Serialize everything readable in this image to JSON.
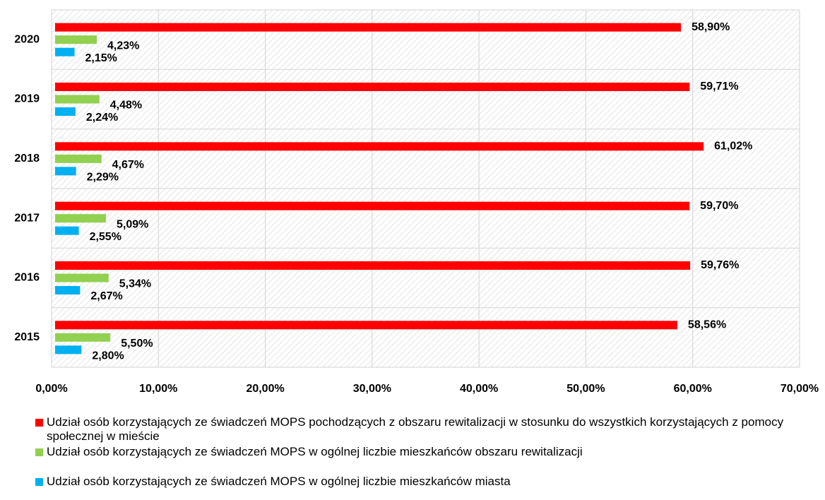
{
  "colors": {
    "series1": "#ff0000",
    "series2": "#92d050",
    "series3": "#00b0f0",
    "grid": "#d9d9d9",
    "hatch": "#dcdcdc"
  },
  "chart_data": {
    "type": "bar",
    "orientation": "horizontal",
    "categories": [
      "2015",
      "2016",
      "2017",
      "2018",
      "2019",
      "2020"
    ],
    "series": [
      {
        "name": "Udział osób korzystających ze świadczeń MOPS pochodzących z obszaru rewitalizacji w stosunku do wszystkich korzystających z pomocy społecznej w mieście",
        "values": [
          58.56,
          59.76,
          59.7,
          61.02,
          59.71,
          58.9
        ],
        "labels": [
          "58,56%",
          "59,76%",
          "59,70%",
          "61,02%",
          "59,71%",
          "58,90%"
        ]
      },
      {
        "name": "Udział osób korzystających ze świadczeń MOPS w ogólnej liczbie mieszkańców obszaru rewitalizacji",
        "values": [
          5.5,
          5.34,
          5.09,
          4.67,
          4.48,
          4.23
        ],
        "labels": [
          "5,50%",
          "5,34%",
          "5,09%",
          "4,67%",
          "4,48%",
          "4,23%"
        ]
      },
      {
        "name": "Udział osób korzystających ze świadczeń MOPS w ogólnej liczbie mieszkańców miasta",
        "values": [
          2.8,
          2.67,
          2.55,
          2.29,
          2.24,
          2.15
        ],
        "labels": [
          "2,80%",
          "2,67%",
          "2,55%",
          "2,29%",
          "2,24%",
          "2,15%"
        ]
      }
    ],
    "xlim": [
      0,
      70
    ],
    "xticks": [
      0,
      10,
      20,
      30,
      40,
      50,
      60,
      70
    ],
    "xtick_labels": [
      "0,00%",
      "10,00%",
      "20,00%",
      "30,00%",
      "40,00%",
      "50,00%",
      "60,00%",
      "70,00%"
    ],
    "grid": true,
    "legend_position": "bottom"
  },
  "legend": {
    "items": [
      "Udział osób korzystających ze świadczeń MOPS pochodzących z obszaru rewitalizacji w stosunku do wszystkich korzystających z pomocy społecznej w mieście",
      "Udział osób korzystających ze świadczeń MOPS w ogólnej liczbie mieszkańców obszaru rewitalizacji",
      "Udział osób korzystających ze świadczeń MOPS w ogólnej liczbie mieszkańców miasta"
    ]
  }
}
